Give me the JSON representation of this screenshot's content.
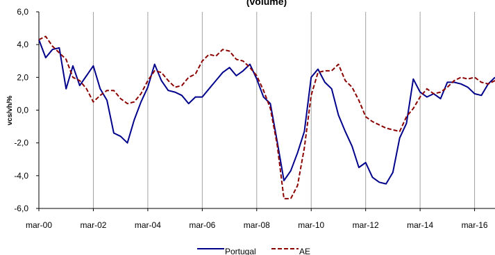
{
  "chart_data": {
    "type": "line",
    "title": "(volume)",
    "xlabel": "",
    "ylabel": "vcs/vh/%",
    "ylim": [
      -6,
      6
    ],
    "y_ticks": [
      "6,0",
      "4,0",
      "2,0",
      "0,0",
      "-2,0",
      "-4,0",
      "-6,0"
    ],
    "x_ticks": [
      "mar-00",
      "mar-02",
      "mar-04",
      "mar-06",
      "mar-08",
      "mar-10",
      "mar-12",
      "mar-14",
      "mar-16"
    ],
    "x_range": [
      2000.0,
      2016.75
    ],
    "grid": "vertical at year ticks",
    "legend_position": "bottom",
    "x": [
      2000.0,
      2000.25,
      2000.5,
      2000.75,
      2001.0,
      2001.25,
      2001.5,
      2001.75,
      2002.0,
      2002.25,
      2002.5,
      2002.75,
      2003.0,
      2003.25,
      2003.5,
      2003.75,
      2004.0,
      2004.25,
      2004.5,
      2004.75,
      2005.0,
      2005.25,
      2005.5,
      2005.75,
      2006.0,
      2006.25,
      2006.5,
      2006.75,
      2007.0,
      2007.25,
      2007.5,
      2007.75,
      2008.0,
      2008.25,
      2008.5,
      2008.75,
      2009.0,
      2009.25,
      2009.5,
      2009.75,
      2010.0,
      2010.25,
      2010.5,
      2010.75,
      2011.0,
      2011.25,
      2011.5,
      2011.75,
      2012.0,
      2012.25,
      2012.5,
      2012.75,
      2013.0,
      2013.25,
      2013.5,
      2013.75,
      2014.0,
      2014.25,
      2014.5,
      2014.75,
      2015.0,
      2015.25,
      2015.5,
      2015.75,
      2016.0,
      2016.25,
      2016.5,
      2016.75
    ],
    "series": [
      {
        "name": "Portugal",
        "color": "#00008B",
        "style": "solid",
        "values": [
          4.3,
          3.2,
          3.7,
          3.8,
          1.3,
          2.7,
          1.5,
          2.1,
          2.7,
          1.3,
          0.6,
          -1.4,
          -1.6,
          -2.0,
          -0.6,
          0.5,
          1.4,
          2.8,
          1.8,
          1.2,
          1.1,
          0.9,
          0.4,
          0.8,
          0.8,
          1.3,
          1.8,
          2.3,
          2.6,
          2.1,
          2.4,
          2.8,
          1.9,
          0.8,
          0.4,
          -1.9,
          -4.3,
          -3.7,
          -2.6,
          -1.3,
          2.0,
          2.5,
          1.7,
          1.3,
          -0.3,
          -1.3,
          -2.2,
          -3.5,
          -3.2,
          -4.1,
          -4.4,
          -4.5,
          -3.8,
          -1.7,
          -0.8,
          1.9,
          1.1,
          0.8,
          1.0,
          0.7,
          1.7,
          1.7,
          1.6,
          1.4,
          1.0,
          0.9,
          1.6,
          2.0
        ]
      },
      {
        "name": "AE",
        "color": "#8B0000",
        "style": "dashed",
        "values": [
          4.3,
          4.5,
          3.9,
          3.5,
          3.1,
          2.0,
          1.8,
          1.3,
          0.5,
          0.9,
          1.2,
          1.2,
          0.7,
          0.4,
          0.5,
          1.0,
          1.8,
          2.4,
          2.3,
          1.8,
          1.4,
          1.5,
          2.0,
          2.2,
          3.0,
          3.4,
          3.3,
          3.7,
          3.6,
          3.1,
          3.0,
          2.6,
          2.1,
          1.2,
          0.1,
          -2.1,
          -5.4,
          -5.4,
          -4.6,
          -2.3,
          0.9,
          2.3,
          2.4,
          2.4,
          2.8,
          1.8,
          1.4,
          0.6,
          -0.4,
          -0.7,
          -0.9,
          -1.1,
          -1.2,
          -1.3,
          -0.4,
          0.1,
          0.8,
          1.3,
          1.0,
          1.1,
          1.4,
          1.8,
          2.0,
          1.9,
          2.0,
          1.7,
          1.6,
          1.8
        ]
      }
    ]
  }
}
